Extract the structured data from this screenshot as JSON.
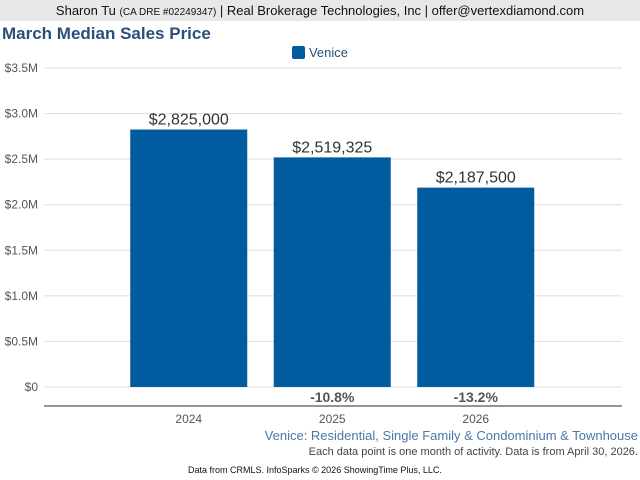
{
  "header": {
    "name": "Sharon Tu",
    "license": "(CA DRE #02249347)",
    "rest": "| Real Brokerage Technologies, Inc | offer@vertexdiamond.com"
  },
  "chart_data": {
    "type": "bar",
    "title": "March Median Sales Price",
    "categories": [
      "2024",
      "2025",
      "2026"
    ],
    "series": [
      {
        "name": "Venice",
        "values": [
          2825000,
          2519325,
          2187500
        ],
        "color": "#005b9f"
      }
    ],
    "data_labels": [
      "$2,825,000",
      "$2,519,325",
      "$2,187,500"
    ],
    "change_labels": [
      "",
      "-10.8%",
      "-13.2%"
    ],
    "ylim": [
      0,
      3500000
    ],
    "yticks": [
      0,
      500000,
      1000000,
      1500000,
      2000000,
      2500000,
      3000000,
      3500000
    ],
    "ytick_labels": [
      "$0",
      "$0.5M",
      "$1.0M",
      "$1.5M",
      "$2.0M",
      "$2.5M",
      "$3.0M",
      "$3.5M"
    ],
    "grid": true,
    "legend": "top-center"
  },
  "subtitle": "Venice: Residential, Single Family & Condominium & Townhouse",
  "note": "Each data point is one month of activity. Data is from April 30, 2026.",
  "footer": "Data from CRMLS. InfoSparks © 2026 ShowingTime Plus, LLC."
}
